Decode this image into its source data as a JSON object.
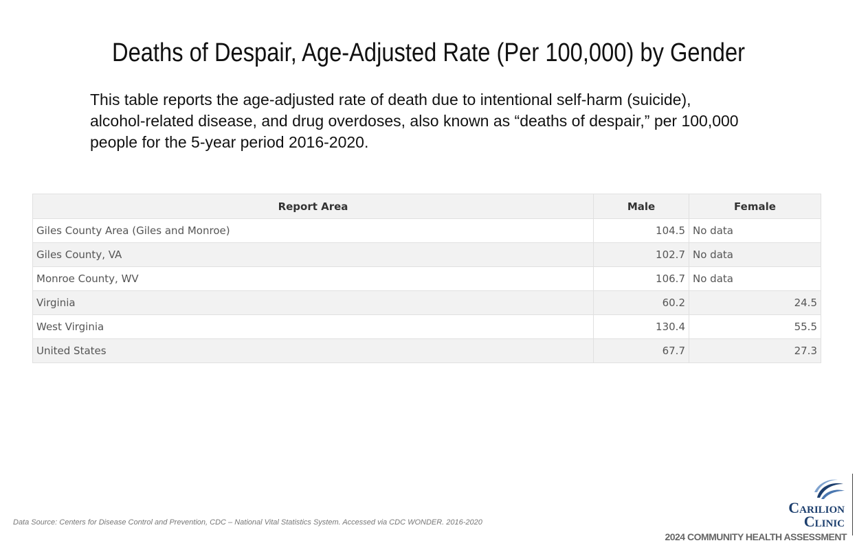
{
  "header": {
    "title": "Deaths of Despair, Age-Adjusted Rate (Per 100,000) by Gender",
    "description": "This table reports the age-adjusted rate of death due to intentional self-harm (suicide), alcohol-related disease, and drug overdoses, also known as “deaths of despair,” per 100,000 people for the 5-year period 2016-2020."
  },
  "table": {
    "columns": [
      "Report Area",
      "Male",
      "Female"
    ],
    "rows": [
      [
        "Giles County Area (Giles and Monroe)",
        104.5,
        "No data"
      ],
      [
        "Giles County, VA",
        102.7,
        "No data"
      ],
      [
        "Monroe County, WV",
        106.7,
        "No data"
      ],
      [
        "Virginia",
        60.2,
        24.5
      ],
      [
        "West Virginia",
        130.4,
        55.5
      ],
      [
        "United States",
        67.7,
        27.3
      ]
    ]
  },
  "footer": {
    "source": "Data Source: Centers for Disease Control and Prevention, CDC – National Vital Statistics System. Accessed via CDC WONDER. 2016-2020",
    "logo_line1": "Carilion",
    "logo_line2": "Clinic",
    "tagline": "2024 COMMUNITY HEALTH ASSESSMENT"
  }
}
